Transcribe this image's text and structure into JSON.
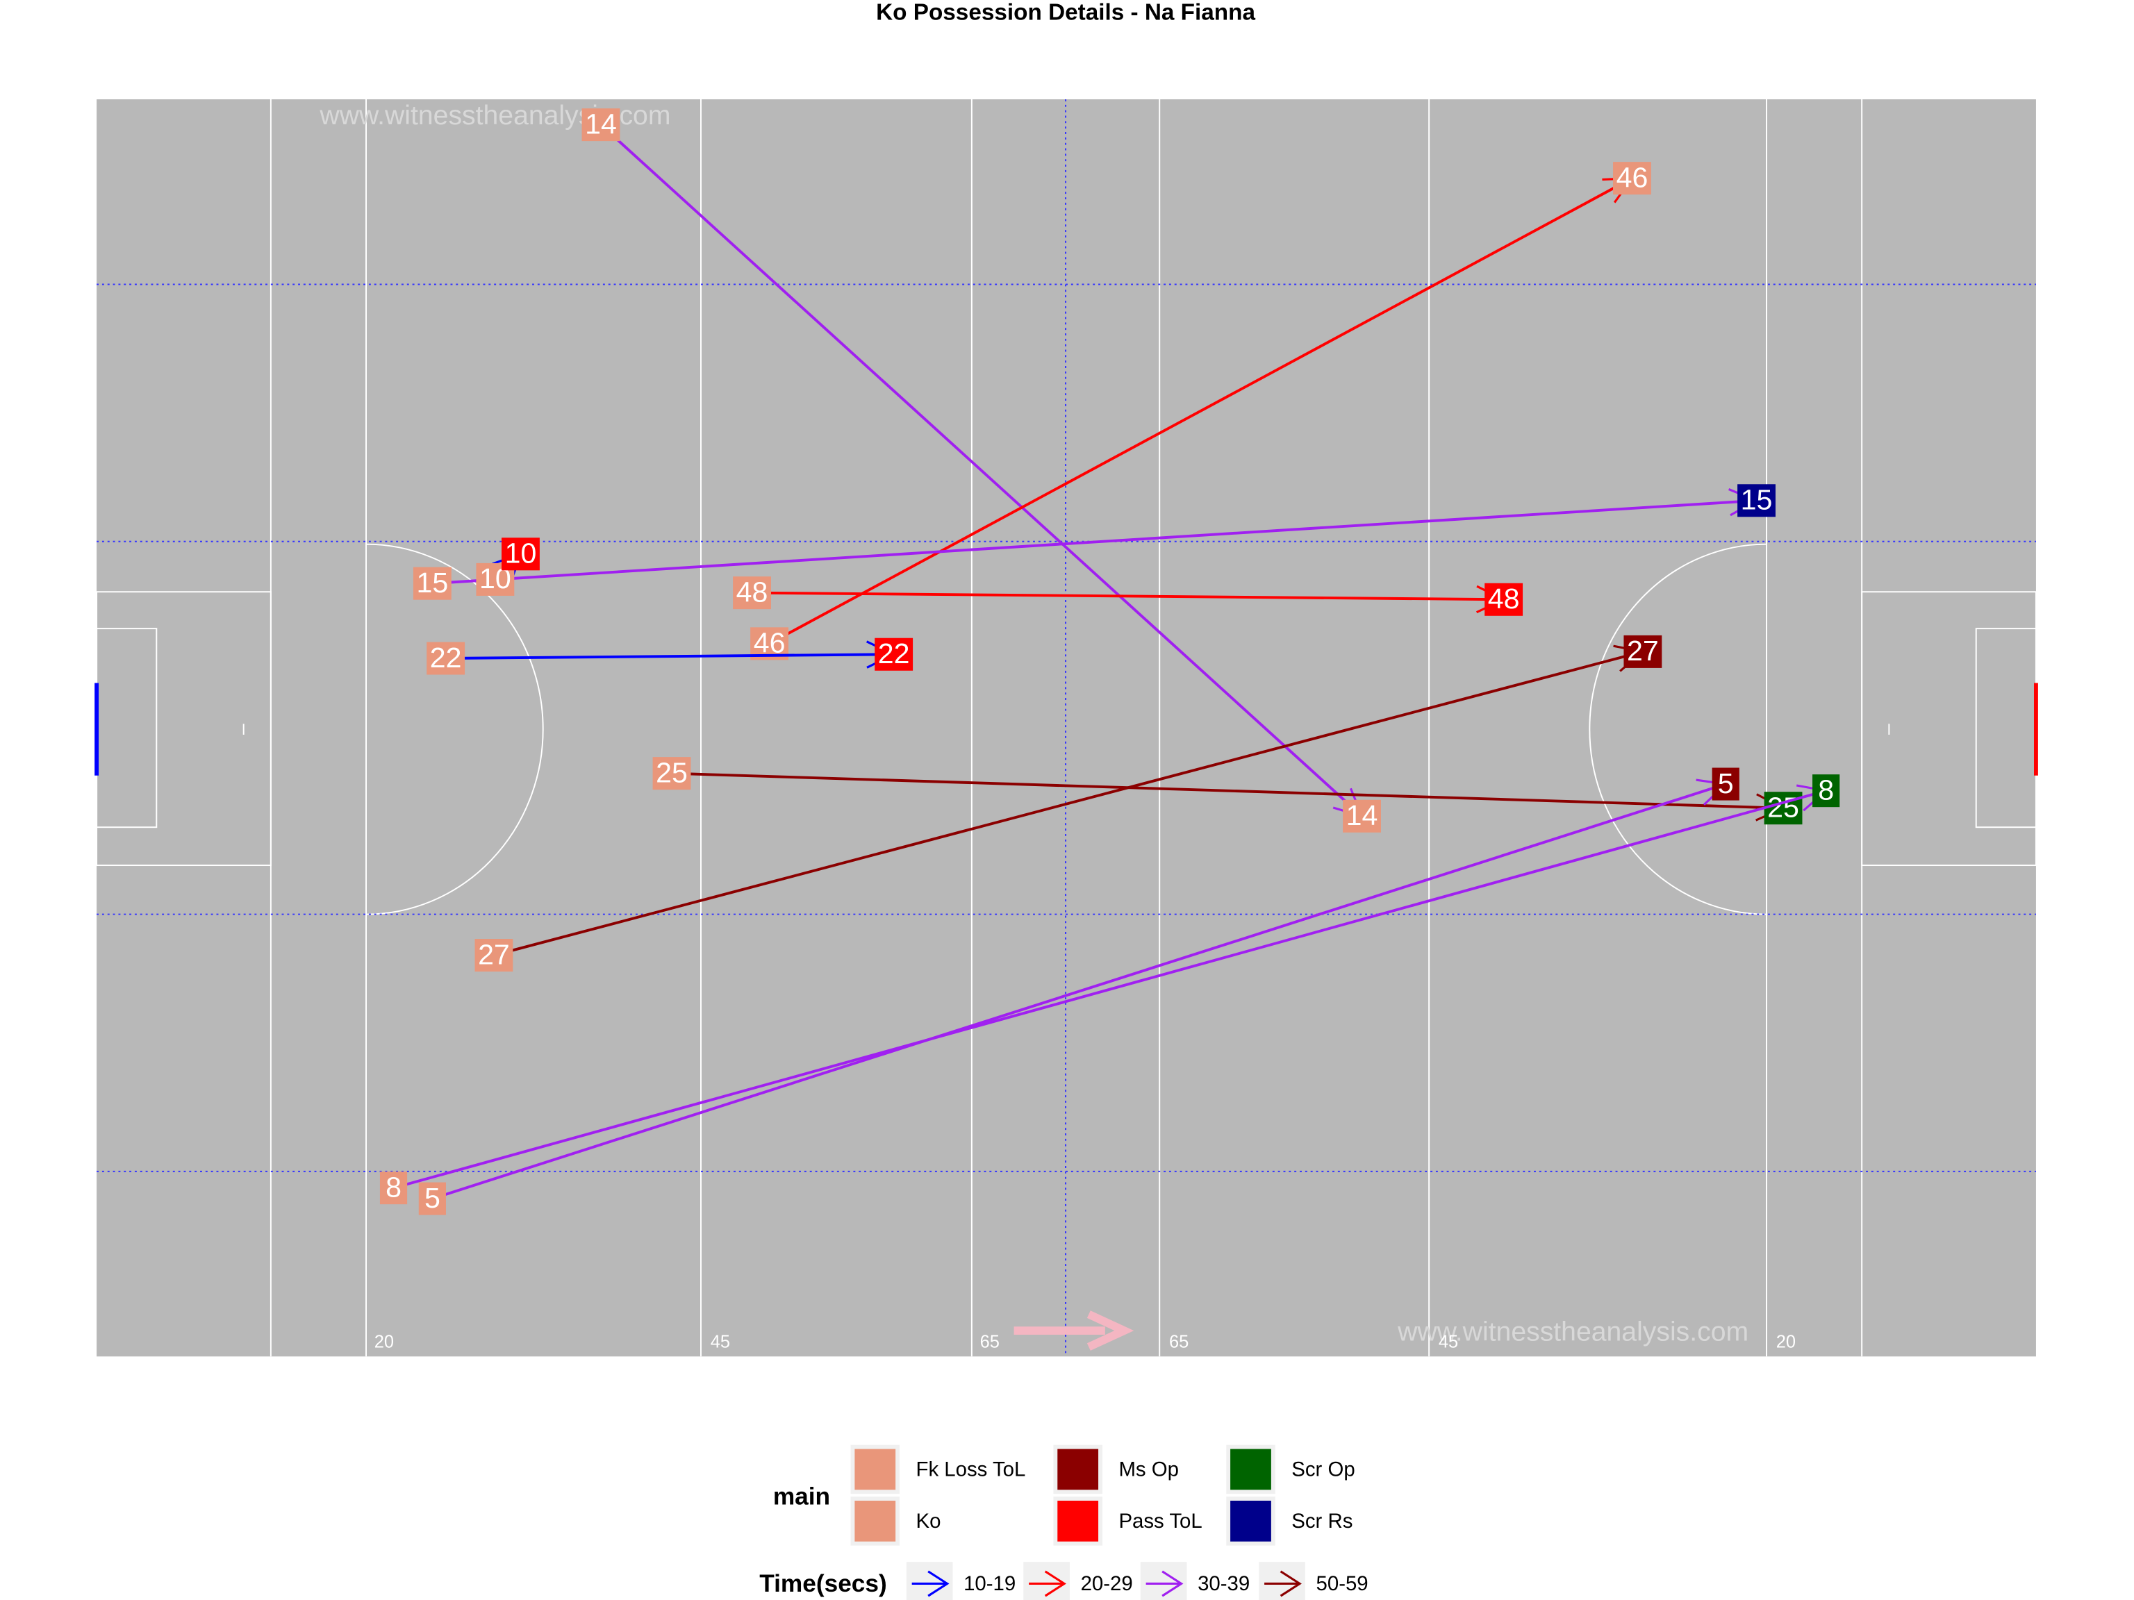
{
  "chart_data": {
    "type": "pitch",
    "title": "Ko Possession Details - Na Fianna",
    "watermark": "www.witnesstheanalysis.com",
    "xlim": [
      0,
      145
    ],
    "ylim": [
      0,
      94
    ],
    "distance_labels": [
      "20",
      "45",
      "65",
      "65",
      "45",
      "20"
    ],
    "legend_main": {
      "title": "main",
      "entries": [
        {
          "name": "Fk Loss ToL",
          "color": "#e9967a"
        },
        {
          "name": "Ko",
          "color": "#e9967a"
        },
        {
          "name": "Ms Op",
          "color": "#8b0000"
        },
        {
          "name": "Pass ToL",
          "color": "#ff0000"
        },
        {
          "name": "Scr Op",
          "color": "#006400"
        },
        {
          "name": "Scr Rs",
          "color": "#00008b"
        }
      ]
    },
    "legend_time": {
      "title": "Time(secs)",
      "entries": [
        {
          "name": "10-19",
          "color": "#0000ff"
        },
        {
          "name": "20-29",
          "color": "#ff0000"
        },
        {
          "name": "30-39",
          "color": "#a020f0"
        },
        {
          "name": "50-59",
          "color": "#8b0000"
        }
      ]
    },
    "possessions": [
      {
        "label": "14",
        "start": [
          37.7,
          1.9
        ],
        "end": [
          94.6,
          53.6
        ],
        "start_type": "Ko",
        "end_type": "Fk Loss ToL",
        "time": "30-39"
      },
      {
        "label": "46",
        "start": [
          50.3,
          40.7
        ],
        "end": [
          114.8,
          5.9
        ],
        "start_type": "Ko",
        "end_type": "Fk Loss ToL",
        "time": "20-29"
      },
      {
        "label": "15",
        "start": [
          25.1,
          36.2
        ],
        "end": [
          124.1,
          30.0
        ],
        "start_type": "Ko",
        "end_type": "Scr Rs",
        "time": "30-39"
      },
      {
        "label": "10",
        "start": [
          29.8,
          35.9
        ],
        "end": [
          31.7,
          34.0
        ],
        "start_type": "Ko",
        "end_type": "Pass ToL",
        "time": "10-19"
      },
      {
        "label": "48",
        "start": [
          49.0,
          36.9
        ],
        "end": [
          105.2,
          37.4
        ],
        "start_type": "Ko",
        "end_type": "Pass ToL",
        "time": "20-29"
      },
      {
        "label": "22",
        "start": [
          26.1,
          41.8
        ],
        "end": [
          59.6,
          41.5
        ],
        "start_type": "Ko",
        "end_type": "Pass ToL",
        "time": "10-19"
      },
      {
        "label": "27",
        "start": [
          29.7,
          64.0
        ],
        "end": [
          115.6,
          41.3
        ],
        "start_type": "Ko",
        "end_type": "Ms Op",
        "time": "50-59"
      },
      {
        "label": "25",
        "start": [
          43.0,
          50.4
        ],
        "end": [
          126.1,
          53.0
        ],
        "start_type": "Ko",
        "end_type": "Scr Op",
        "time": "50-59"
      },
      {
        "label": "5",
        "start": [
          25.1,
          82.2
        ],
        "end": [
          121.8,
          51.2
        ],
        "start_type": "Ko",
        "end_type": "Ms Op",
        "time": "30-39"
      },
      {
        "label": "8",
        "start": [
          22.2,
          81.4
        ],
        "end": [
          129.3,
          51.7
        ],
        "start_type": "Ko",
        "end_type": "Scr Op",
        "time": "30-39"
      }
    ]
  }
}
